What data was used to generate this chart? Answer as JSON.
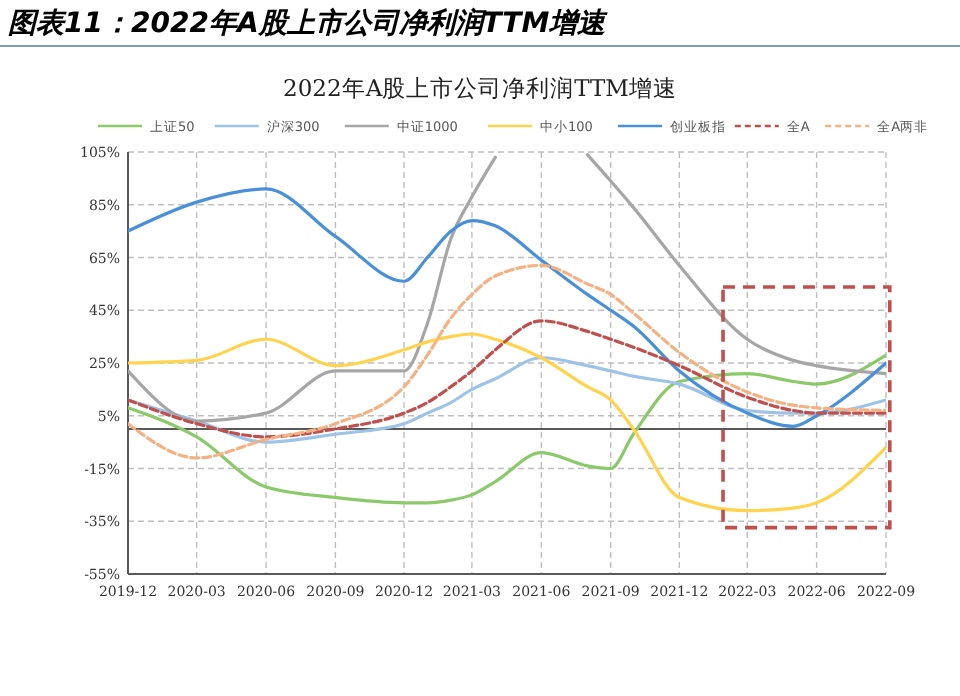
{
  "chart_data": {
    "type": "line",
    "title": "图表11：2022年A股上市公司净利润TTM增速",
    "subtitle": "2022年A股上市公司净利润TTM增速",
    "x": [
      "2019-12",
      "2020-03",
      "2020-06",
      "2020-09",
      "2020-12",
      "2021-01",
      "2021-02",
      "2021-03",
      "2021-04",
      "2021-06",
      "2021-08",
      "2021-09",
      "2021-10",
      "2021-12",
      "2022-03",
      "2022-05",
      "2022-06",
      "2022-09"
    ],
    "series": [
      {
        "name": "上证50",
        "color": "#8cc96a",
        "line_style": "solid",
        "values": [
          8,
          -3,
          -22,
          -26,
          -28,
          -28,
          -27,
          -25,
          -20,
          -9,
          -14,
          -15,
          -2,
          18,
          21,
          18,
          17,
          28
        ]
      },
      {
        "name": "沪深300",
        "color": "#9dc3e6",
        "line_style": "solid",
        "values": [
          11,
          3,
          -5,
          -2,
          2,
          6,
          10,
          15,
          19,
          27,
          24,
          22,
          20,
          17,
          7,
          6,
          6,
          11
        ]
      },
      {
        "name": "中证1000",
        "color": "#a6a6a6",
        "line_style": "solid",
        "values": [
          22,
          3,
          6,
          22,
          22,
          40,
          72,
          88,
          103,
          null,
          104,
          94,
          84,
          62,
          34,
          26,
          24,
          21
        ]
      },
      {
        "name": "中小100",
        "color": "#ffd34d",
        "line_style": "solid",
        "values": [
          25,
          26,
          34,
          24,
          30,
          33,
          35,
          36,
          34,
          27,
          16,
          11,
          0,
          -26,
          -31,
          -30,
          -28,
          -7
        ]
      },
      {
        "name": "创业板指",
        "color": "#4a90d9",
        "line_style": "solid",
        "values": [
          75,
          86,
          91,
          73,
          56,
          65,
          75,
          79,
          77,
          64,
          51,
          45,
          39,
          22,
          6,
          1,
          5,
          25
        ]
      },
      {
        "name": "全A",
        "color": "#c0504d",
        "line_style": "dashed",
        "values": [
          11,
          2,
          -3,
          0,
          6,
          10,
          16,
          22,
          30,
          41,
          37,
          34,
          31,
          24,
          12,
          7,
          6,
          6
        ]
      },
      {
        "name": "全A两非",
        "color": "#f4b183",
        "line_style": "dashed",
        "values": [
          2,
          -11,
          -4,
          2,
          16,
          28,
          42,
          51,
          58,
          62,
          55,
          51,
          44,
          29,
          14,
          9,
          8,
          7
        ]
      }
    ],
    "xlim": [
      "2019-12",
      "2022-09"
    ],
    "xticks": [
      "2019-12",
      "2020-03",
      "2020-06",
      "2020-09",
      "2020-12",
      "2021-03",
      "2021-06",
      "2021-09",
      "2021-12",
      "2022-03",
      "2022-06",
      "2022-09"
    ],
    "ylim": [
      -55,
      105
    ],
    "yticks": [
      {
        "value": -55,
        "label": "-55%"
      },
      {
        "value": -35,
        "label": "-35%"
      },
      {
        "value": -15,
        "label": "-15%"
      },
      {
        "value": 5,
        "label": "5%"
      },
      {
        "value": 25,
        "label": "25%"
      },
      {
        "value": 45,
        "label": "45%"
      },
      {
        "value": 65,
        "label": "65%"
      },
      {
        "value": 85,
        "label": "85%"
      },
      {
        "value": 105,
        "label": "105%"
      }
    ],
    "ref_lines": [
      {
        "axis": "y",
        "value": 0,
        "color": "#595959"
      }
    ],
    "grid": true,
    "legend": "top"
  }
}
